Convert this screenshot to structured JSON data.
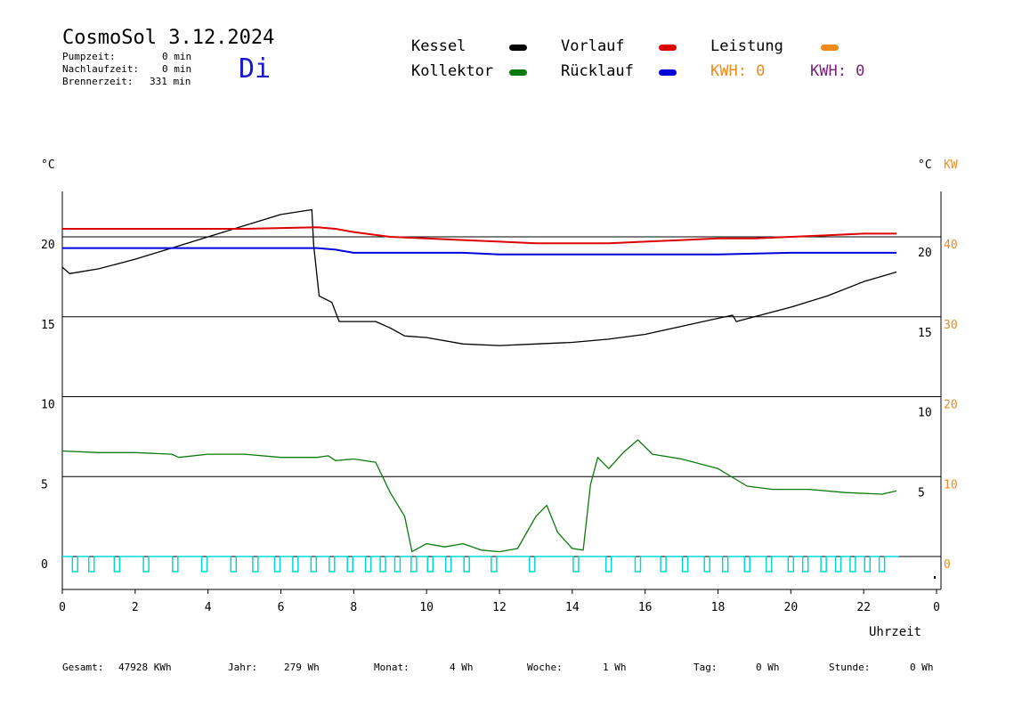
{
  "header": {
    "title": "CosmoSol 3.12.2024",
    "day": "Di",
    "stats": [
      {
        "label": "Pumpzeit:",
        "value": "0 min"
      },
      {
        "label": "Nachlaufzeit:",
        "value": "0 min"
      },
      {
        "label": "Brennerzeit:",
        "value": "331 min"
      }
    ]
  },
  "legend": {
    "kessel": "Kessel",
    "kollektor": "Kollektor",
    "vorlauf": "Vorlauf",
    "ruecklauf": "Rücklauf",
    "leistung": "Leistung",
    "kwh1": "KWH: 0",
    "kwh2": "KWH: 0"
  },
  "colors": {
    "kessel": "#000000",
    "kollektor": "#0a7a0a",
    "vorlauf": "#dd0000",
    "ruecklauf": "#0000dd",
    "leistung": "#f08a1a",
    "kwh2": "#7a1f7a",
    "pump": "#00d8d8"
  },
  "chart_data": {
    "type": "line",
    "title": "CosmoSol 3.12.2024",
    "xlabel": "Uhrzeit",
    "left_unit": "°C",
    "right_unit_a": "°C",
    "right_unit_b": "KW",
    "x_ticks": [
      "0",
      "2",
      "4",
      "6",
      "8",
      "10",
      "12",
      "14",
      "16",
      "18",
      "20",
      "22",
      "0"
    ],
    "y_left_ticks": [
      "0",
      "5",
      "10",
      "15",
      "20"
    ],
    "y_right_c_ticks": [
      "5",
      "10",
      "15",
      "20"
    ],
    "y_right_kw_ticks": [
      "0",
      "10",
      "20",
      "30",
      "40"
    ],
    "xlim": [
      0,
      24
    ],
    "ylim_left": [
      0,
      20
    ],
    "series": [
      {
        "name": "Kessel",
        "key": "kessel",
        "x": [
          0,
          0.2,
          1,
          2,
          3,
          4,
          5,
          6,
          6.85,
          6.9,
          7.05,
          7.4,
          7.6,
          8.6,
          9.0,
          9.4,
          10,
          11,
          12,
          13,
          14,
          15,
          16,
          17,
          18,
          18.4,
          18.5,
          19,
          20,
          21,
          22,
          22.9
        ],
        "y": [
          18.1,
          17.7,
          18.0,
          18.6,
          19.3,
          20.0,
          20.7,
          21.4,
          21.7,
          19.5,
          16.3,
          15.9,
          14.7,
          14.7,
          14.3,
          13.8,
          13.7,
          13.3,
          13.2,
          13.3,
          13.4,
          13.6,
          13.9,
          14.4,
          14.9,
          15.1,
          14.7,
          15.0,
          15.6,
          16.3,
          17.2,
          17.8
        ]
      },
      {
        "name": "Vorlauf",
        "key": "vorlauf",
        "x": [
          0,
          3,
          5,
          7,
          7.5,
          8,
          9,
          10,
          11,
          12,
          13,
          14,
          15,
          16,
          17,
          18,
          19,
          20,
          21,
          22,
          22.9
        ],
        "y": [
          20.5,
          20.5,
          20.5,
          20.6,
          20.5,
          20.3,
          20.0,
          19.9,
          19.8,
          19.7,
          19.6,
          19.6,
          19.6,
          19.7,
          19.8,
          19.9,
          19.9,
          20.0,
          20.1,
          20.2,
          20.2
        ]
      },
      {
        "name": "Rücklauf",
        "key": "ruecklauf",
        "x": [
          0,
          7,
          7.5,
          8,
          9,
          10,
          11,
          12,
          14,
          16,
          18,
          20,
          22,
          22.9
        ],
        "y": [
          19.3,
          19.3,
          19.2,
          19.0,
          19.0,
          19.0,
          19.0,
          18.9,
          18.9,
          18.9,
          18.9,
          19.0,
          19.0,
          19.0
        ]
      },
      {
        "name": "Kollektor",
        "key": "kollektor",
        "x": [
          0,
          1,
          2,
          3,
          3.2,
          4,
          5,
          6,
          7,
          7.3,
          7.5,
          8,
          8.6,
          9.0,
          9.4,
          9.6,
          10,
          10.5,
          11,
          11.5,
          12,
          12.5,
          13,
          13.3,
          13.6,
          14,
          14.3,
          14.5,
          14.7,
          15,
          15.4,
          15.8,
          16.2,
          17,
          18,
          18.8,
          19.5,
          20.5,
          21.5,
          22.5,
          22.9
        ],
        "y": [
          6.6,
          6.5,
          6.5,
          6.4,
          6.2,
          6.4,
          6.4,
          6.2,
          6.2,
          6.3,
          6.0,
          6.1,
          5.9,
          4.0,
          2.5,
          0.3,
          0.8,
          0.6,
          0.8,
          0.4,
          0.3,
          0.5,
          2.5,
          3.2,
          1.5,
          0.5,
          0.4,
          4.5,
          6.2,
          5.5,
          6.5,
          7.3,
          6.4,
          6.1,
          5.5,
          4.4,
          4.2,
          4.2,
          4.0,
          3.9,
          4.1
        ]
      }
    ],
    "pump_pulse_hours": [
      0.35,
      0.8,
      1.5,
      2.3,
      3.1,
      3.9,
      4.7,
      5.3,
      5.9,
      6.4,
      6.9,
      7.4,
      7.9,
      8.4,
      8.8,
      9.2,
      9.65,
      10.1,
      10.6,
      11.1,
      11.85,
      12.9,
      14.1,
      15.0,
      15.8,
      16.5,
      17.1,
      17.7,
      18.2,
      18.8,
      19.4,
      20.0,
      20.4,
      20.9,
      21.3,
      21.7,
      22.1,
      22.5
    ],
    "stat_labels": [
      {
        "label": "Gesamt:",
        "value": "47928 KWh"
      },
      {
        "label": "Jahr:",
        "value": "279 Wh"
      },
      {
        "label": "Monat:",
        "value": "4 Wh"
      },
      {
        "label": "Woche:",
        "value": "1 Wh"
      },
      {
        "label": "Tag:",
        "value": "0 Wh"
      },
      {
        "label": "Stunde:",
        "value": "0 Wh"
      }
    ]
  }
}
